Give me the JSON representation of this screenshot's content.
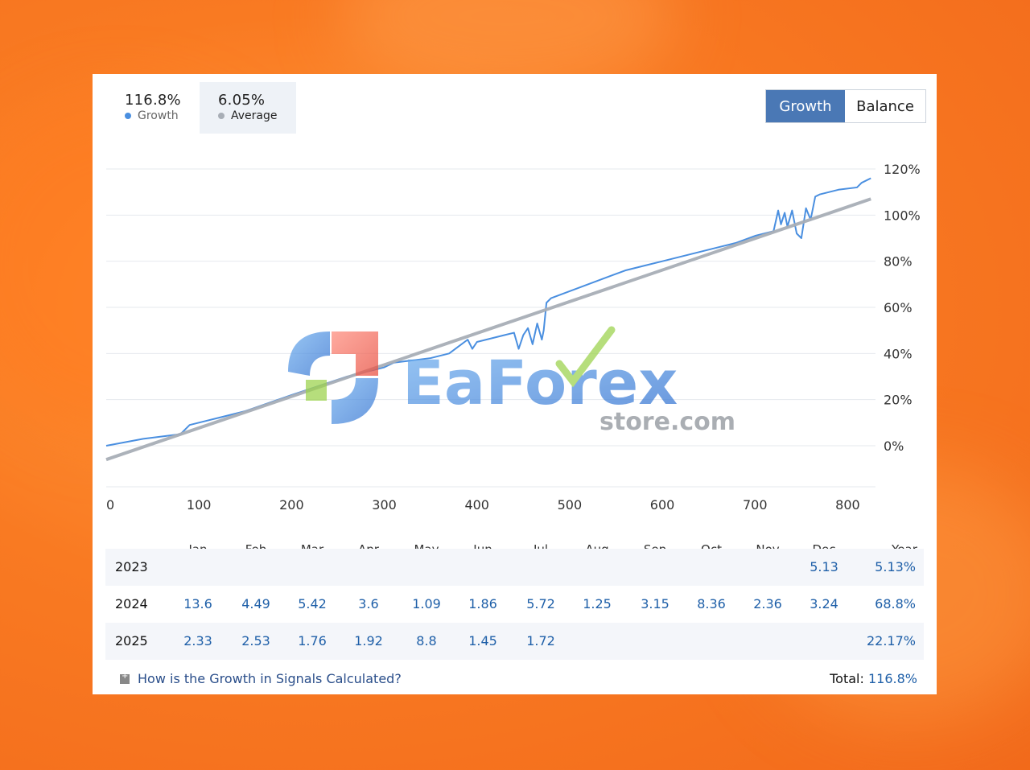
{
  "stats": [
    {
      "value": "116.8%",
      "label": "Growth",
      "dot_color": "#4a8fe0"
    },
    {
      "value": "6.05%",
      "label": "Average",
      "dot_color": "#a8aeb6"
    }
  ],
  "toggle": {
    "growth_label": "Growth",
    "balance_label": "Balance",
    "active": "Growth"
  },
  "chart_data": {
    "type": "line",
    "x_ticks": [
      "0",
      "100",
      "200",
      "300",
      "400",
      "500",
      "600",
      "700",
      "800"
    ],
    "y_ticks": [
      "0%",
      "20%",
      "40%",
      "60%",
      "80%",
      "100%",
      "120%"
    ],
    "xlim": [
      0,
      830
    ],
    "ylim": [
      -20,
      120
    ],
    "grid": true,
    "series": [
      {
        "name": "Growth",
        "color": "#4a8fe0",
        "x": [
          0,
          40,
          60,
          80,
          90,
          100,
          120,
          150,
          200,
          230,
          260,
          280,
          300,
          310,
          330,
          350,
          370,
          380,
          390,
          395,
          400,
          410,
          420,
          430,
          440,
          445,
          450,
          455,
          460,
          465,
          470,
          472,
          475,
          480,
          500,
          520,
          540,
          560,
          580,
          600,
          620,
          640,
          660,
          680,
          700,
          720,
          725,
          728,
          732,
          735,
          740,
          745,
          750,
          755,
          760,
          765,
          770,
          790,
          810,
          815,
          825
        ],
        "y": [
          0,
          3,
          4,
          5,
          9,
          10,
          12,
          15,
          22,
          26,
          30,
          32,
          34,
          36,
          37,
          38,
          40,
          43,
          46,
          42,
          45,
          46,
          47,
          48,
          49,
          42,
          48,
          51,
          44,
          53,
          46,
          50,
          62,
          64,
          67,
          70,
          73,
          76,
          78,
          80,
          82,
          84,
          86,
          88,
          91,
          93,
          102,
          96,
          101,
          95,
          102,
          92,
          90,
          103,
          98,
          108,
          109,
          111,
          112,
          114,
          116
        ]
      },
      {
        "name": "Average",
        "color": "#a8aeb6",
        "x": [
          0,
          825
        ],
        "y": [
          -6,
          107
        ]
      }
    ]
  },
  "months_header": [
    "Jan",
    "Feb",
    "Mar",
    "Apr",
    "May",
    "Jun",
    "Jul",
    "Aug",
    "Sep",
    "Oct",
    "Nov",
    "Dec"
  ],
  "year_header": "Year",
  "rows": [
    {
      "year": "2023",
      "values": [
        "",
        "",
        "",
        "",
        "",
        "",
        "",
        "",
        "",
        "",
        "",
        "5.13"
      ],
      "total": "5.13%"
    },
    {
      "year": "2024",
      "values": [
        "13.6",
        "4.49",
        "5.42",
        "3.6",
        "1.09",
        "1.86",
        "5.72",
        "1.25",
        "3.15",
        "8.36",
        "2.36",
        "3.24"
      ],
      "total": "68.8%"
    },
    {
      "year": "2025",
      "values": [
        "2.33",
        "2.53",
        "1.76",
        "1.92",
        "8.8",
        "1.45",
        "1.72",
        "",
        "",
        "",
        "",
        ""
      ],
      "total": "22.17%"
    }
  ],
  "footer": {
    "link_text": "How is the Growth in Signals Calculated?",
    "total_label": "Total:",
    "total_value": "116.8%"
  },
  "watermark": {
    "brand": "EaForex",
    "domain": "store.com"
  }
}
